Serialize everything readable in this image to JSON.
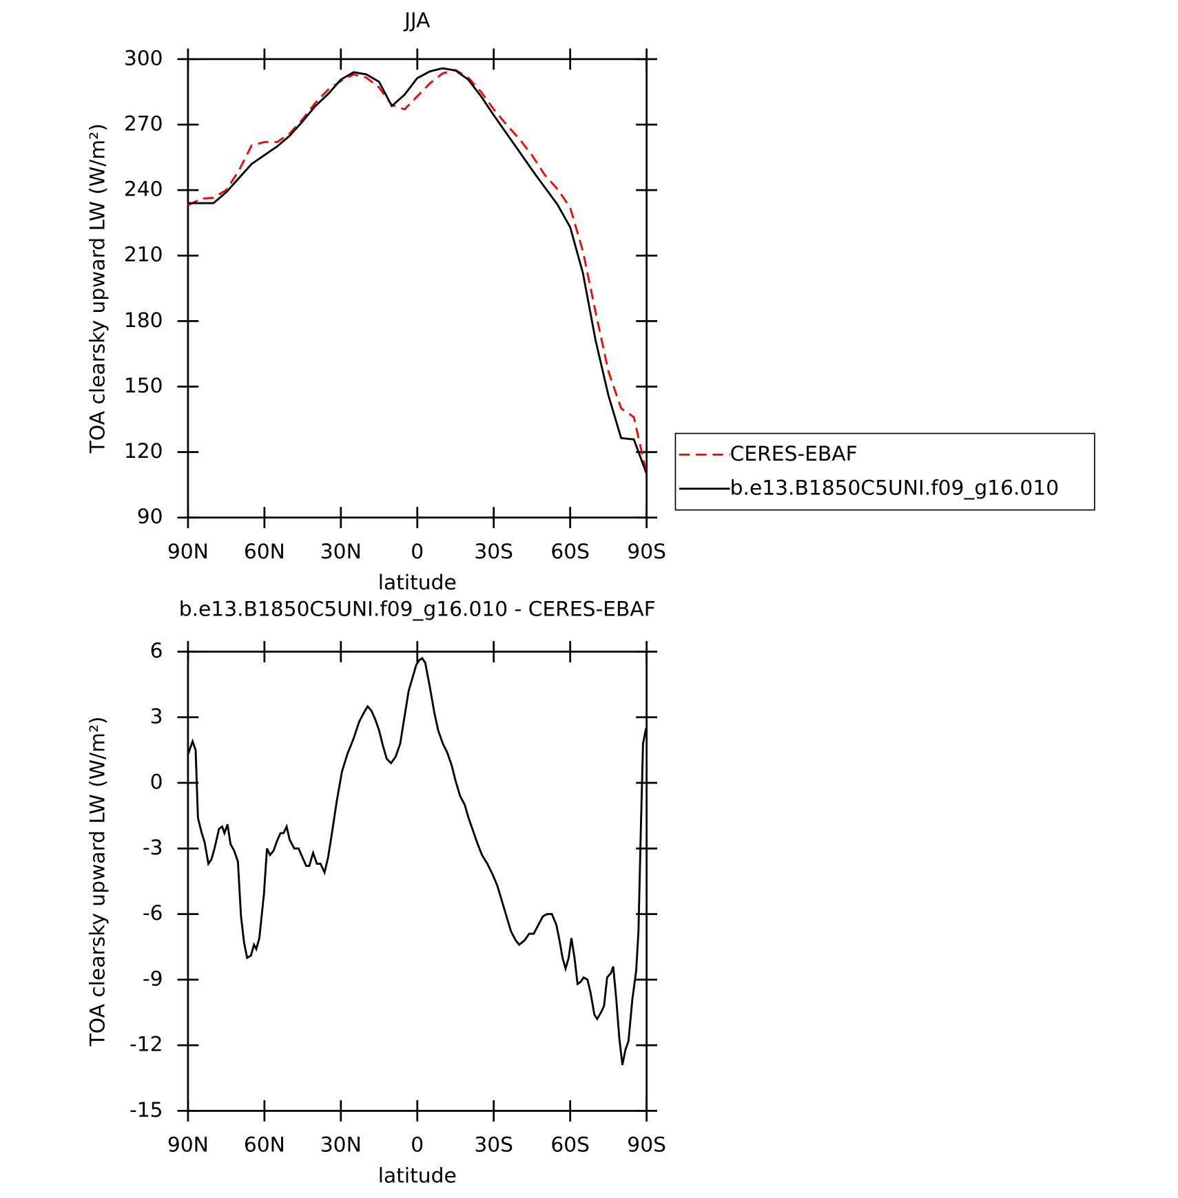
{
  "chart_data": [
    {
      "type": "line",
      "title": "JJA",
      "xlabel": "latitude",
      "ylabel": "TOA clearsky upward LW (W/m²)",
      "x": [
        90,
        85,
        80,
        75,
        70,
        65,
        60,
        55,
        50,
        45,
        40,
        35,
        30,
        25,
        20,
        15,
        10,
        5,
        0,
        -5,
        -10,
        -15,
        -20,
        -25,
        -30,
        -35,
        -40,
        -45,
        -50,
        -55,
        -60,
        -65,
        -70,
        -75,
        -80,
        -85,
        -90
      ],
      "series": [
        {
          "name": "CERES-EBAF",
          "color": "#ff0000",
          "linestyle": "dashed",
          "values": [
            233,
            236,
            236.5,
            240,
            249,
            260.5,
            262,
            262,
            266,
            272.5,
            280,
            286,
            290,
            293,
            291.5,
            287,
            279,
            277,
            283,
            289,
            293.5,
            295,
            291.5,
            285,
            277,
            270,
            263.5,
            256,
            247,
            240.5,
            232,
            212,
            184,
            157,
            140,
            136,
            110
          ]
        },
        {
          "name": "b.e13.B1850C5UNI.f09_g16.010",
          "color": "#000000",
          "linestyle": "solid",
          "values": [
            234,
            234,
            234,
            239,
            245.5,
            252,
            256,
            260,
            265,
            271.5,
            278.5,
            284,
            290.6,
            294,
            293,
            289.6,
            278.5,
            283.7,
            291.3,
            294.4,
            295.8,
            294.8,
            290.6,
            283,
            274.3,
            266,
            257.7,
            249.3,
            241.3,
            233.4,
            223,
            202,
            171,
            146,
            126.4,
            125.8,
            110
          ]
        }
      ],
      "xlim": [
        90,
        -90
      ],
      "xticks": [
        {
          "value": 90,
          "label": "90N"
        },
        {
          "value": 60,
          "label": "60N"
        },
        {
          "value": 30,
          "label": "30N"
        },
        0,
        {
          "value": -30,
          "label": "30S"
        },
        {
          "value": -60,
          "label": "60S"
        },
        {
          "value": -90,
          "label": "90S"
        }
      ],
      "ylim": [
        90,
        300
      ],
      "yticks": [
        90,
        120,
        150,
        180,
        210,
        240,
        270,
        300
      ],
      "legend": "right"
    },
    {
      "type": "line",
      "title": "b.e13.B1850C5UNI.f09_g16.010 - CERES-EBAF",
      "xlabel": "latitude",
      "ylabel": "TOA clearsky upward LW (W/m²)",
      "x": [
        90,
        88.2,
        87,
        86.1,
        84.6,
        83.5,
        82,
        80.8,
        79.6,
        77.8,
        76.6,
        75.7,
        74.5,
        73.3,
        71.9,
        70.4,
        69.2,
        68,
        66.8,
        65.3,
        64.1,
        63.2,
        62,
        60.2,
        59,
        57.8,
        56.4,
        55.2,
        53.7,
        52.5,
        51.3,
        50.1,
        48.3,
        46.6,
        45.1,
        43.6,
        42.4,
        40.9,
        39.4,
        38,
        36.4,
        35,
        33.5,
        31.7,
        29.6,
        27.5,
        25.1,
        22.8,
        21,
        19.5,
        18,
        16.5,
        15,
        13.5,
        12,
        10.3,
        8.5,
        6.7,
        5.2,
        3.4,
        1.9,
        0.4,
        -0.7,
        -1.9,
        -3.1,
        -4.9,
        -6.7,
        -8.2,
        -10,
        -11.7,
        -13.5,
        -15,
        -16.8,
        -18.6,
        -20.1,
        -21.6,
        -23.7,
        -25.4,
        -27.5,
        -29.6,
        -31.4,
        -33.2,
        -35,
        -36.8,
        -38.6,
        -40,
        -42.1,
        -43.9,
        -45.7,
        -47.5,
        -49.3,
        -51,
        -52.8,
        -54.6,
        -55.8,
        -57,
        -58.2,
        -59.4,
        -60.5,
        -61.7,
        -62.9,
        -64.1,
        -65.3,
        -66.8,
        -68,
        -69.5,
        -70.6,
        -72.1,
        -73.3,
        -74.5,
        -76,
        -76.9,
        -78.1,
        -79.3,
        -80.5,
        -81.7,
        -82.9,
        -84.4,
        -85.9,
        -86.8,
        -87.7,
        -88.6,
        -89.8
      ],
      "values": [
        1.3,
        1.9,
        1.5,
        -1.6,
        -2.3,
        -2.7,
        -3.7,
        -3.5,
        -3.0,
        -2.1,
        -2.0,
        -2.3,
        -1.9,
        -2.8,
        -3.1,
        -3.6,
        -6.1,
        -7.3,
        -8.0,
        -7.9,
        -7.4,
        -7.6,
        -7.1,
        -5.1,
        -3.0,
        -3.3,
        -3.1,
        -2.7,
        -2.3,
        -2.3,
        -2.0,
        -2.6,
        -3.0,
        -3.0,
        -3.4,
        -3.8,
        -3.8,
        -3.2,
        -3.7,
        -3.7,
        -4.1,
        -3.4,
        -2.3,
        -0.9,
        0.5,
        1.3,
        2.0,
        2.8,
        3.2,
        3.5,
        3.3,
        2.9,
        2.4,
        1.7,
        1.1,
        0.9,
        1.2,
        1.8,
        2.9,
        4.2,
        4.8,
        5.4,
        5.6,
        5.7,
        5.5,
        4.4,
        3.2,
        2.4,
        1.8,
        1.4,
        0.8,
        0.1,
        -0.6,
        -1.0,
        -1.6,
        -2.1,
        -2.8,
        -3.3,
        -3.7,
        -4.2,
        -4.7,
        -5.4,
        -6.1,
        -6.8,
        -7.2,
        -7.4,
        -7.2,
        -6.9,
        -6.9,
        -6.5,
        -6.1,
        -6.0,
        -6.0,
        -6.5,
        -7.2,
        -8.0,
        -8.5,
        -8.0,
        -7.1,
        -8.0,
        -9.2,
        -9.1,
        -8.9,
        -9.0,
        -9.6,
        -10.6,
        -10.8,
        -10.5,
        -10.2,
        -8.9,
        -8.7,
        -8.4,
        -9.9,
        -11.7,
        -12.9,
        -12.2,
        -11.8,
        -9.9,
        -8.6,
        -6.8,
        -2.3,
        1.8,
        2.5
      ],
      "color": "#000000",
      "xlim": [
        90,
        -90
      ],
      "xticks": [
        {
          "value": 90,
          "label": "90N"
        },
        {
          "value": 60,
          "label": "60N"
        },
        {
          "value": 30,
          "label": "30N"
        },
        0,
        {
          "value": -30,
          "label": "30S"
        },
        {
          "value": -60,
          "label": "60S"
        },
        {
          "value": -90,
          "label": "90S"
        }
      ],
      "ylim": [
        -15,
        6
      ],
      "yticks": [
        -15,
        -12,
        -9,
        -6,
        -3,
        0,
        3,
        6
      ]
    }
  ]
}
